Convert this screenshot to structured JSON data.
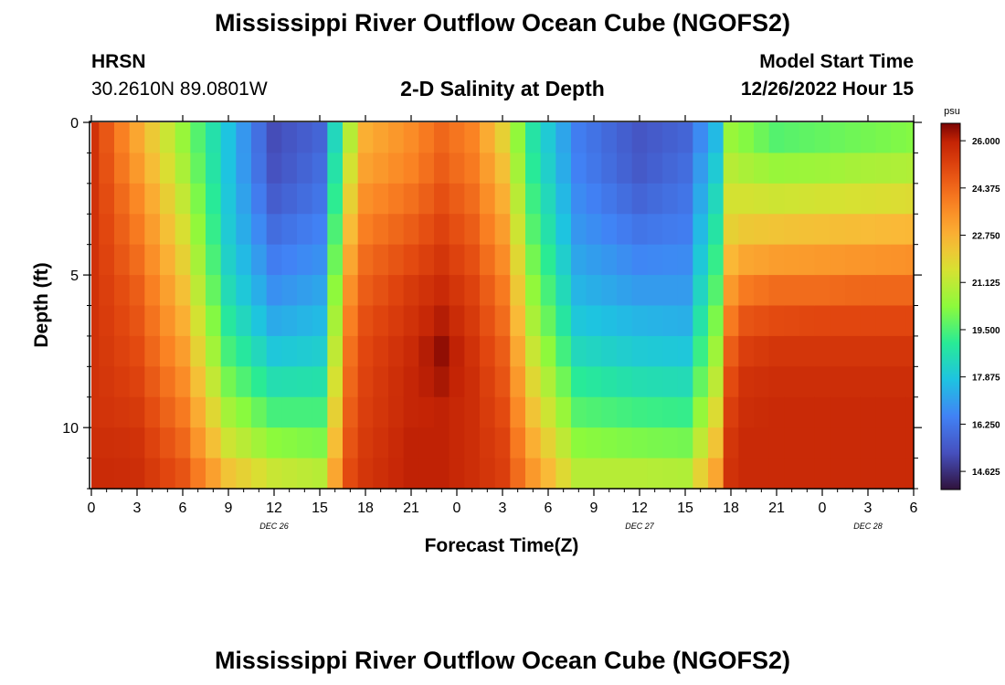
{
  "header": {
    "title": "Mississippi River Outflow Ocean Cube (NGOFS2)",
    "footer_title": "Mississippi River Outflow Ocean Cube (NGOFS2)",
    "station_code": "HRSN",
    "station_coords": "30.2610N  89.0801W",
    "panel_title": "2-D Salinity at Depth",
    "model_start_label": "Model Start Time",
    "model_start_value": "12/26/2022 Hour 15"
  },
  "chart_data": {
    "type": "heatmap",
    "title": "2-D Salinity at Depth",
    "xlabel": "Forecast Time(Z)",
    "ylabel": "Depth (ft)",
    "colorbar_unit": "psu",
    "colorbar_ticks": [
      "26.000",
      "24.375",
      "22.750",
      "21.125",
      "19.500",
      "17.875",
      "16.250",
      "14.625"
    ],
    "colorbar_range": [
      14.0,
      26.6
    ],
    "x_ticks": [
      "0",
      "3",
      "6",
      "9",
      "12",
      "15",
      "18",
      "21",
      "0",
      "3",
      "6",
      "9",
      "12",
      "15",
      "18",
      "21",
      "0",
      "3",
      "6"
    ],
    "date_labels": [
      {
        "text": "DEC 26",
        "hour": 12
      },
      {
        "text": "DEC 27",
        "hour": 36
      },
      {
        "text": "DEC 28",
        "hour": 51
      }
    ],
    "xlim": [
      0,
      54
    ],
    "y_ticks": [
      "0",
      "5",
      "10"
    ],
    "y_tick_values": [
      0,
      5,
      10
    ],
    "ylim": [
      0,
      12
    ],
    "hours": [
      0,
      1,
      2,
      3,
      4,
      5,
      6,
      7,
      8,
      9,
      10,
      11,
      12,
      13,
      14,
      15,
      16,
      17,
      18,
      19,
      20,
      21,
      22,
      23,
      24,
      25,
      26,
      27,
      28,
      29,
      30,
      31,
      32,
      33,
      34,
      35,
      36,
      37,
      38,
      39,
      40,
      41,
      42,
      43,
      44,
      45,
      46,
      47,
      48,
      49,
      50,
      51,
      52,
      53,
      54
    ],
    "depth_levels_ft": [
      0.5,
      1.5,
      2.5,
      3.5,
      4.5,
      5.5,
      6.5,
      7.5,
      8.5,
      9.5,
      10.5,
      11.5
    ],
    "salinity_profiles": [
      {
        "hour": 0,
        "values": [
          25.6,
          25.6,
          25.6,
          25.6,
          25.6,
          25.6,
          25.6,
          25.6,
          25.6,
          25.6,
          25.7,
          25.8
        ]
      },
      {
        "hour": 3,
        "values": [
          23.0,
          23.3,
          23.7,
          24.0,
          24.3,
          24.6,
          24.8,
          25.0,
          25.2,
          25.4,
          25.6,
          25.7
        ]
      },
      {
        "hour": 6,
        "values": [
          20.5,
          20.8,
          21.2,
          21.6,
          22.0,
          22.4,
          22.8,
          23.2,
          23.6,
          24.0,
          24.4,
          24.8
        ]
      },
      {
        "hour": 9,
        "values": [
          17.8,
          17.8,
          17.9,
          18.0,
          18.2,
          18.5,
          18.9,
          19.4,
          20.0,
          20.7,
          21.4,
          22.3
        ]
      },
      {
        "hour": 12,
        "values": [
          15.2,
          15.3,
          15.6,
          16.0,
          16.4,
          16.8,
          17.3,
          17.9,
          18.6,
          19.4,
          20.3,
          21.3
        ]
      },
      {
        "hour": 15,
        "values": [
          15.8,
          16.0,
          16.2,
          16.5,
          16.8,
          17.2,
          17.6,
          18.1,
          18.7,
          19.4,
          20.1,
          21.0
        ]
      },
      {
        "hour": 17,
        "values": [
          21.0,
          21.5,
          22.0,
          22.5,
          23.0,
          23.5,
          23.9,
          24.2,
          24.4,
          24.6,
          24.8,
          25.0
        ]
      },
      {
        "hour": 18,
        "values": [
          22.8,
          23.1,
          23.5,
          23.9,
          24.3,
          24.6,
          24.9,
          25.1,
          25.2,
          25.3,
          25.4,
          25.5
        ]
      },
      {
        "hour": 21,
        "values": [
          23.6,
          23.8,
          24.2,
          24.6,
          25.0,
          25.4,
          25.6,
          25.8,
          25.9,
          25.9,
          26.0,
          26.0
        ]
      },
      {
        "hour": 23,
        "values": [
          24.4,
          24.6,
          24.9,
          25.2,
          25.5,
          25.8,
          26.1,
          26.4,
          26.2,
          26.0,
          26.0,
          26.0
        ]
      },
      {
        "hour": 25,
        "values": [
          23.8,
          24.0,
          24.3,
          24.6,
          24.9,
          25.2,
          25.4,
          25.6,
          25.7,
          25.7,
          25.7,
          25.7
        ]
      },
      {
        "hour": 27,
        "values": [
          22.0,
          22.4,
          22.8,
          23.2,
          23.6,
          24.0,
          24.3,
          24.6,
          24.8,
          25.0,
          25.2,
          25.3
        ]
      },
      {
        "hour": 29,
        "values": [
          18.8,
          19.0,
          19.3,
          19.6,
          20.0,
          20.4,
          20.8,
          21.3,
          21.8,
          22.3,
          22.8,
          23.3
        ]
      },
      {
        "hour": 32,
        "values": [
          16.4,
          16.5,
          16.7,
          16.9,
          17.2,
          17.5,
          17.9,
          18.4,
          19.0,
          19.6,
          20.3,
          21.0
        ]
      },
      {
        "hour": 36,
        "values": [
          15.4,
          15.5,
          15.8,
          16.2,
          16.6,
          17.0,
          17.5,
          18.0,
          18.6,
          19.3,
          20.1,
          21.0
        ]
      },
      {
        "hour": 39,
        "values": [
          15.8,
          16.0,
          16.2,
          16.4,
          16.7,
          17.0,
          17.4,
          17.9,
          18.5,
          19.2,
          20.0,
          20.9
        ]
      },
      {
        "hour": 41,
        "values": [
          17.6,
          18.0,
          18.4,
          18.8,
          19.2,
          19.6,
          20.1,
          20.6,
          21.1,
          21.7,
          22.3,
          23.0
        ]
      },
      {
        "hour": 42,
        "values": [
          20.5,
          21.0,
          21.5,
          22.0,
          22.6,
          23.3,
          24.0,
          24.6,
          25.0,
          25.3,
          25.5,
          25.6
        ]
      },
      {
        "hour": 43,
        "values": [
          20.2,
          20.8,
          21.5,
          22.2,
          23.0,
          24.0,
          24.8,
          25.3,
          25.6,
          25.7,
          25.8,
          25.8
        ]
      },
      {
        "hour": 45,
        "values": [
          19.6,
          20.5,
          21.4,
          22.3,
          23.2,
          24.3,
          25.0,
          25.5,
          25.7,
          25.8,
          25.8,
          25.8
        ]
      },
      {
        "hour": 48,
        "values": [
          19.8,
          20.6,
          21.5,
          22.4,
          23.3,
          24.3,
          25.1,
          25.5,
          25.7,
          25.8,
          25.8,
          25.8
        ]
      },
      {
        "hour": 51,
        "values": [
          20.0,
          20.8,
          21.6,
          22.5,
          23.4,
          24.4,
          25.1,
          25.5,
          25.7,
          25.8,
          25.8,
          25.8
        ]
      },
      {
        "hour": 54,
        "values": [
          20.2,
          20.9,
          21.7,
          22.6,
          23.5,
          24.4,
          25.1,
          25.5,
          25.7,
          25.8,
          25.8,
          25.8
        ]
      }
    ]
  }
}
